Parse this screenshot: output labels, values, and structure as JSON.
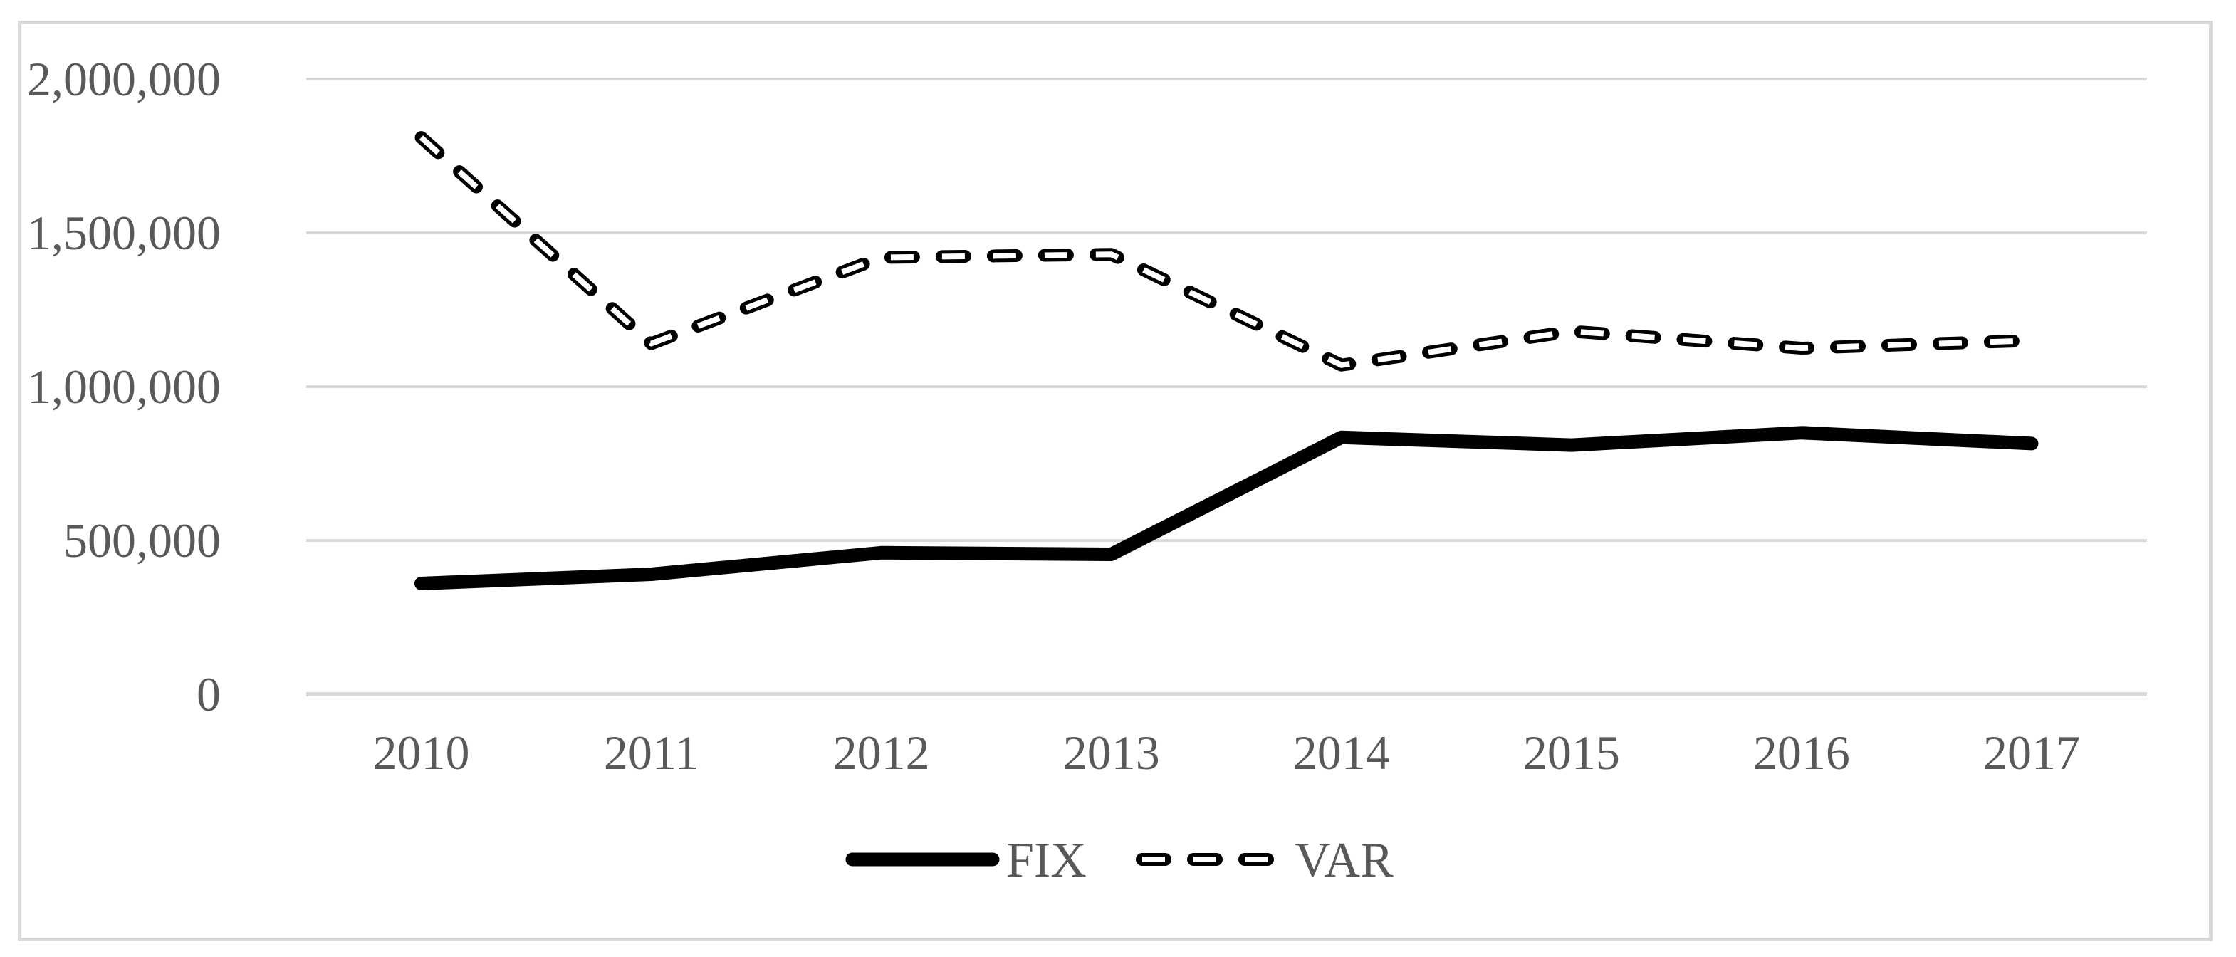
{
  "chart_data": {
    "type": "line",
    "title": "",
    "xlabel": "",
    "ylabel": "",
    "categories": [
      "2010",
      "2011",
      "2012",
      "2013",
      "2014",
      "2015",
      "2016",
      "2017"
    ],
    "series": [
      {
        "name": "FIX",
        "style": "solid",
        "color": "#000000",
        "values": [
          360000,
          390000,
          460000,
          455000,
          835000,
          810000,
          850000,
          815000
        ]
      },
      {
        "name": "VAR",
        "style": "dashed-outlined",
        "color": "#000000",
        "values": [
          1810000,
          1140000,
          1420000,
          1430000,
          1070000,
          1180000,
          1125000,
          1150000
        ]
      }
    ],
    "yticks": [
      {
        "value": 0,
        "label": "0"
      },
      {
        "value": 500000,
        "label": "500,000"
      },
      {
        "value": 1000000,
        "label": "1,000,000"
      },
      {
        "value": 1500000,
        "label": "1,500,000"
      },
      {
        "value": 2000000,
        "label": "2,000,000"
      }
    ],
    "ylim": [
      0,
      2000000
    ],
    "grid": "horizontal",
    "legend_position": "bottom-center",
    "colors": {
      "text": "#595959",
      "gridline": "#D9D9D9",
      "frame": "#D9D9D9",
      "series": "#000000",
      "background": "#FFFFFF"
    }
  }
}
